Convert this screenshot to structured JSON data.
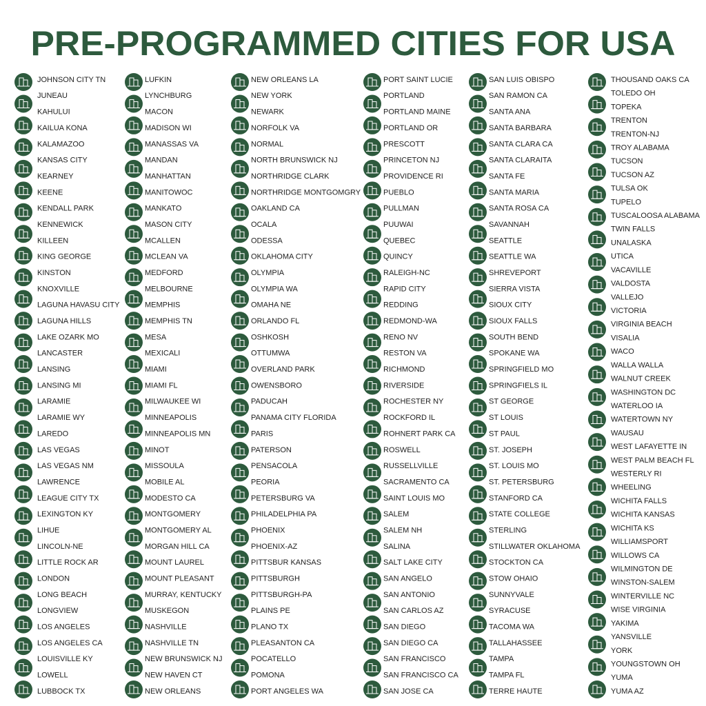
{
  "title": "PRE-PROGRAMMED CITIES FOR USA",
  "columns": [
    [
      "JOHNSON CITY TN",
      "JUNEAU",
      "KAHULUI",
      "KAILUA KONA",
      "KALAMAZOO",
      "KANSAS CITY",
      "KEARNEY",
      "KEENE",
      "KENDALL PARK",
      "KENNEWICK",
      "KILLEEN",
      "KING GEORGE",
      "KINSTON",
      "KNOXVILLE",
      "LAGUNA HAVASU CITY",
      "LAGUNA HILLS",
      "LAKE OZARK MO",
      "LANCASTER",
      "LANSING",
      "LANSING MI",
      "LARAMIE",
      "LARAMIE WY",
      "LAREDO",
      "LAS VEGAS",
      "LAS VEGAS NM",
      "LAWRENCE",
      "LEAGUE CITY TX",
      "LEXINGTON KY",
      "LIHUE",
      "LINCOLN-NE",
      "LITTLE ROCK AR",
      "LONDON",
      "LONG BEACH",
      "LONGVIEW",
      "LOS ANGELES",
      "LOS ANGELES CA",
      "LOUISVILLE KY",
      "LOWELL",
      "LUBBOCK TX"
    ],
    [
      "LUFKIN",
      "LYNCHBURG",
      "MACON",
      "MADISON WI",
      "MANASSAS VA",
      "MANDAN",
      "MANHATTAN",
      "MANITOWOC",
      "MANKATO",
      "MASON CITY",
      "MCALLEN",
      "MCLEAN VA",
      "MEDFORD",
      "MELBOURNE",
      "MEMPHIS",
      "MEMPHIS TN",
      "MESA",
      "MEXICALI",
      "MIAMI",
      "MIAMI FL",
      "MILWAUKEE WI",
      "MINNEAPOLIS",
      "MINNEAPOLIS MN",
      "MINOT",
      "MISSOULA",
      "MOBILE AL",
      "MODESTO CA",
      "MONTGOMERY",
      "MONTGOMERY AL",
      "MORGAN HILL CA",
      "MOUNT LAUREL",
      "MOUNT PLEASANT",
      "MURRAY, KENTUCKY",
      "MUSKEGON",
      "NASHVILLE",
      "NASHVILLE TN",
      "NEW BRUNSWICK NJ",
      "NEW HAVEN CT",
      "NEW ORLEANS"
    ],
    [
      "NEW ORLEANS LA",
      "NEW YORK",
      "NEWARK",
      "NORFOLK VA",
      "NORMAL",
      "NORTH BRUNSWICK NJ",
      "NORTHRIDGE CLARK",
      "NORTHRIDGE MONTGOMGRY",
      "OAKLAND CA",
      "OCALA",
      "ODESSA",
      "OKLAHOMA CITY",
      "OLYMPIA",
      "OLYMPIA WA",
      "OMAHA NE",
      "ORLANDO FL",
      "OSHKOSH",
      "OTTUMWA",
      "OVERLAND PARK",
      "OWENSBORO",
      "PADUCAH",
      "PANAMA CITY FLORIDA",
      "PARIS",
      "PATERSON",
      "PENSACOLA",
      "PEORIA",
      "PETERSBURG VA",
      "PHILADELPHIA PA",
      "PHOENIX",
      "PHOENIX-AZ",
      "PITTSBUR KANSAS",
      "PITTSBURGH",
      "PITTSBURGH-PA",
      "PLAINS PE",
      "PLANO TX",
      "PLEASANTON CA",
      "POCATELLO",
      "POMONA",
      "PORT ANGELES WA"
    ],
    [
      "PORT SAINT LUCIE",
      "PORTLAND",
      "PORTLAND MAINE",
      "PORTLAND OR",
      "PRESCOTT",
      "PRINCETON NJ",
      "PROVIDENCE RI",
      "PUEBLO",
      "PULLMAN",
      "PUUWAI",
      "QUEBEC",
      "QUINCY",
      "RALEIGH-NC",
      "RAPID CITY",
      "REDDING",
      "REDMOND-WA",
      "RENO NV",
      "RESTON VA",
      "RICHMOND",
      "RIVERSIDE",
      "ROCHESTER NY",
      "ROCKFORD IL",
      "ROHNERT PARK CA",
      "ROSWELL",
      "RUSSELLVILLE",
      "SACRAMENTO CA",
      "SAINT LOUIS MO",
      "SALEM",
      "SALEM NH",
      "SALINA",
      "SALT LAKE CITY",
      "SAN ANGELO",
      "SAN ANTONIO",
      "SAN CARLOS AZ",
      "SAN DIEGO",
      "SAN DIEGO CA",
      "SAN FRANCISCO",
      "SAN FRANCISCO CA",
      "SAN JOSE CA"
    ],
    [
      "SAN LUIS OBISPO",
      "SAN RAMON CA",
      "SANTA ANA",
      "SANTA BARBARA",
      "SANTA CLARA CA",
      "SANTA CLARAITA",
      "SANTA FE",
      "SANTA MARIA",
      "SANTA ROSA CA",
      "SAVANNAH",
      "SEATTLE",
      "SEATTLE WA",
      "SHREVEPORT",
      "SIERRA VISTA",
      "SIOUX CITY",
      "SIOUX FALLS",
      "SOUTH BEND",
      "SPOKANE WA",
      "SPRINGFIELD MO",
      "SPRINGFIELS IL",
      "ST GEORGE",
      "ST LOUIS",
      "ST PAUL",
      "ST. JOSEPH",
      "ST. LOUIS MO",
      "ST. PETERSBURG",
      "STANFORD CA",
      "STATE COLLEGE",
      "STERLING",
      "STILLWATER OKLAHOMA",
      "STOCKTON CA",
      "STOW OHAIO",
      "SUNNYVALE",
      "SYRACUSE",
      "TACOMA WA",
      "TALLAHASSEE",
      "TAMPA",
      "TAMPA FL",
      "TERRE HAUTE"
    ],
    [
      "THOUSAND OAKS CA",
      "TOLEDO OH",
      "TOPEKA",
      "TRENTON",
      "TRENTON-NJ",
      "TROY ALABAMA",
      "TUCSON",
      "TUCSON AZ",
      "TULSA OK",
      "TUPELO",
      "TUSCALOOSA ALABAMA",
      "TWIN FALLS",
      "UNALASKA",
      "UTICA",
      "VACAVILLE",
      "VALDOSTA",
      "VALLEJO",
      "VICTORIA",
      "VIRGINIA BEACH",
      "VISALIA",
      "WACO",
      "WALLA WALLA",
      "WALNUT CREEK",
      "WASHINGTON DC",
      "WATERLOO IA",
      "WATERTOWN NY",
      "WAUSAU",
      "WEST LAFAYETTE IN",
      "WEST PALM BEACH FL",
      "WESTERLY RI",
      "WHEELING",
      "WICHITA FALLS",
      "WICHITA KANSAS",
      "WICHITA KS",
      "WILLIAMSPORT",
      "WILLOWS CA",
      "WILMINGTON DE",
      "WINSTON-SALEM",
      "WINTERVILLE NC",
      "WISE VIRGINIA",
      "YAKIMA",
      "YANSVILLE",
      "YORK",
      "YOUNGSTOWN OH",
      "YUMA",
      "YUMA AZ"
    ]
  ]
}
